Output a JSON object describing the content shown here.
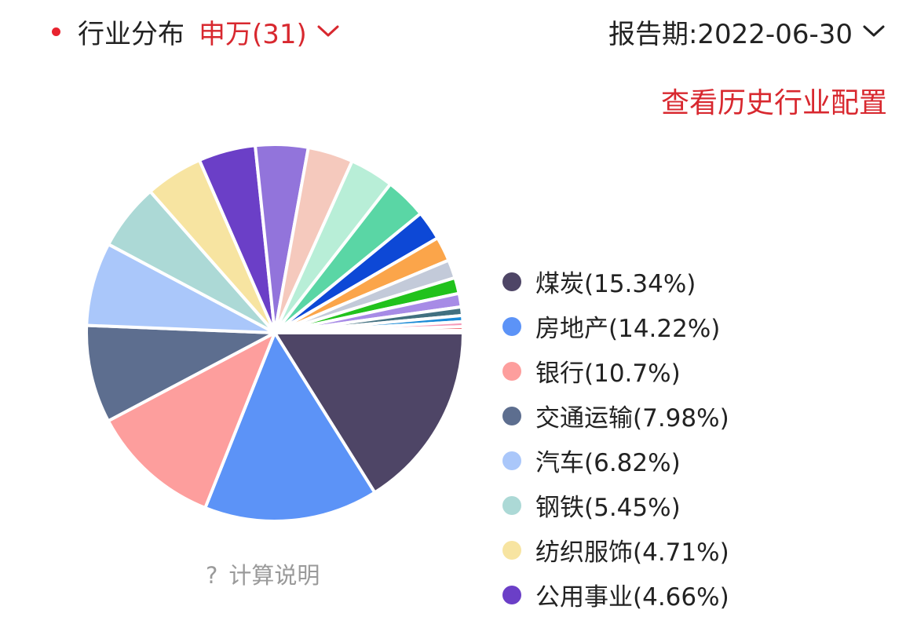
{
  "header": {
    "title": "行业分布",
    "source_label": "申万(31)",
    "report_label": "报告期:2022-06-30"
  },
  "history_link": "查看历史行业配置",
  "calc_note": "计算说明",
  "calc_note_icon": "?",
  "colors": {
    "accent": "#d8282f",
    "dot": "#e8232f"
  },
  "chart_data": {
    "type": "pie",
    "title": "",
    "slices": [
      {
        "label": "煤炭",
        "display": "煤炭(15.34%)",
        "value": 15.34,
        "color": "#4e4566"
      },
      {
        "label": "房地产",
        "display": "房地产(14.22%)",
        "value": 14.22,
        "color": "#5c93f7"
      },
      {
        "label": "银行",
        "display": "银行(10.7%)",
        "value": 10.7,
        "color": "#fd9e9d"
      },
      {
        "label": "交通运输",
        "display": "交通运输(7.98%)",
        "value": 7.98,
        "color": "#5d6e8f"
      },
      {
        "label": "汽车",
        "display": "汽车(6.82%)",
        "value": 6.82,
        "color": "#aac7fa"
      },
      {
        "label": "钢铁",
        "display": "钢铁(5.45%)",
        "value": 5.45,
        "color": "#acd9d6"
      },
      {
        "label": "纺织服饰",
        "display": "纺织服饰(4.71%)",
        "value": 4.71,
        "color": "#f7e4a1"
      },
      {
        "label": "公用事业",
        "display": "公用事业(4.66%)",
        "value": 4.66,
        "color": "#6b3fc7"
      },
      {
        "label": "",
        "display": "",
        "value": 4.3,
        "color": "#9274db"
      },
      {
        "label": "",
        "display": "",
        "value": 3.7,
        "color": "#f5c9bd"
      },
      {
        "label": "",
        "display": "",
        "value": 3.6,
        "color": "#b8eed7"
      },
      {
        "label": "",
        "display": "",
        "value": 3.4,
        "color": "#5ad6a5"
      },
      {
        "label": "",
        "display": "",
        "value": 2.4,
        "color": "#0d48d6"
      },
      {
        "label": "",
        "display": "",
        "value": 2.0,
        "color": "#fba54a"
      },
      {
        "label": "",
        "display": "",
        "value": 1.5,
        "color": "#c3cad9"
      },
      {
        "label": "",
        "display": "",
        "value": 1.3,
        "color": "#21c21c"
      },
      {
        "label": "",
        "display": "",
        "value": 1.1,
        "color": "#a78be6"
      },
      {
        "label": "",
        "display": "",
        "value": 0.7,
        "color": "#417080"
      },
      {
        "label": "",
        "display": "",
        "value": 0.5,
        "color": "#1a8ad6"
      },
      {
        "label": "",
        "display": "",
        "value": 0.4,
        "color": "#f59ab8"
      },
      {
        "label": "",
        "display": "",
        "value": 0.3,
        "color": "#e8232f"
      },
      {
        "label": "",
        "display": "",
        "value": 0.2,
        "color": "#f2b8b8"
      }
    ]
  }
}
